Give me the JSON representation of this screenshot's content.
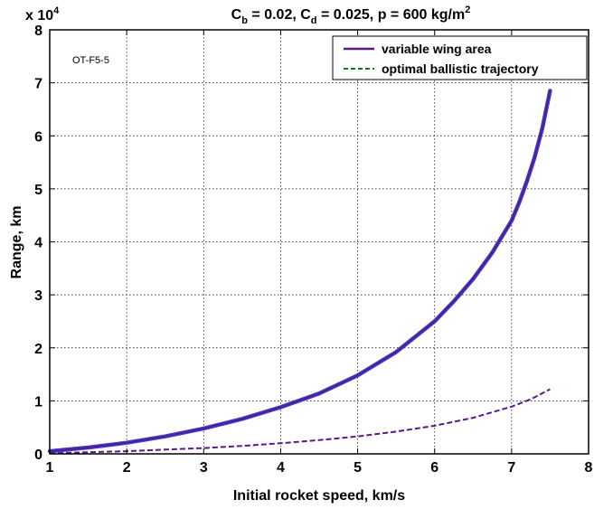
{
  "chart_data": {
    "type": "line",
    "title_parts": {
      "c1": "C",
      "c1_sub": "b",
      "c1_val": " = 0.02,  ",
      "c2": "C",
      "c2_sub": "d",
      "c2_val": " = 0.025, p = 600 kg/m",
      "sup": "2"
    },
    "xlabel": "Initial rocket speed, km/s",
    "ylabel": "Range, km",
    "y_multiplier": {
      "base": "x 10",
      "exp": "4"
    },
    "annotation": "OT-F5-5",
    "xlim": [
      1,
      8
    ],
    "ylim": [
      0,
      8
    ],
    "x_ticks": [
      "1",
      "2",
      "3",
      "4",
      "5",
      "6",
      "7",
      "8"
    ],
    "y_ticks": [
      "0",
      "1",
      "2",
      "3",
      "4",
      "5",
      "6",
      "7",
      "8"
    ],
    "grid": true,
    "legend_position": "top-right",
    "series": [
      {
        "name": "variable wing area",
        "style": "solid",
        "color": "#5a1a8c",
        "x": [
          1.0,
          1.5,
          2.0,
          2.5,
          3.0,
          3.5,
          4.0,
          4.5,
          5.0,
          5.5,
          6.0,
          6.25,
          6.5,
          6.75,
          7.0,
          7.1,
          7.2,
          7.3,
          7.4,
          7.5
        ],
        "y": [
          0.05,
          0.12,
          0.21,
          0.33,
          0.48,
          0.66,
          0.88,
          1.14,
          1.48,
          1.92,
          2.5,
          2.88,
          3.3,
          3.8,
          4.4,
          4.75,
          5.15,
          5.6,
          6.15,
          6.85
        ]
      },
      {
        "name": "optimal ballistic trajectory",
        "style": "dashed",
        "color": "#1a7a1a",
        "x": [
          1.0,
          1.5,
          2.0,
          2.5,
          3.0,
          3.5,
          4.0,
          4.5,
          5.0,
          5.5,
          6.0,
          6.5,
          7.0,
          7.25,
          7.5
        ],
        "y": [
          0.01,
          0.03,
          0.05,
          0.08,
          0.11,
          0.15,
          0.2,
          0.26,
          0.33,
          0.42,
          0.53,
          0.68,
          0.89,
          1.03,
          1.22
        ]
      }
    ]
  }
}
